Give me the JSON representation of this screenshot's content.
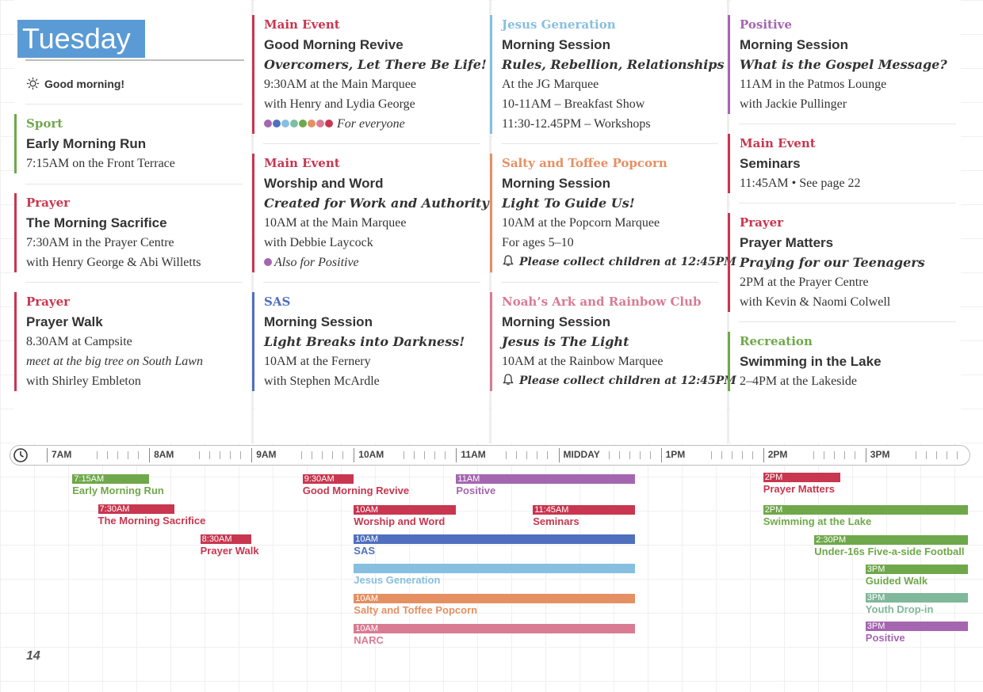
{
  "day": "Tuesday",
  "greeting": "Good morning!",
  "page_number": "14",
  "colors": {
    "blue": "#5b9bd5",
    "green": "#6fa84a",
    "red": "#c8364f",
    "purple": "#a566b0",
    "navy": "#4f6fbf",
    "sky": "#87bfe0",
    "orange": "#e49063",
    "pink": "#d87b93",
    "teal": "#7cbfa3",
    "youthgreen": "#7fb89a"
  },
  "entries": {
    "sport": {
      "cat": "Sport",
      "title": "Early Morning Run",
      "l1": "7:15AM on the Front Terrace"
    },
    "prayer1": {
      "cat": "Prayer",
      "title": "The Morning Sacrifice",
      "l1": "7:30AM in the Prayer Centre",
      "l2": "with Henry George  & Abi Willetts"
    },
    "prayer2": {
      "cat": "Prayer",
      "title": "Prayer Walk",
      "l1": "8.30AM at Campsite",
      "l2": "meet at the big tree on South Lawn",
      "l3": "with Shirley Embleton"
    },
    "main1": {
      "cat": "Main Event",
      "title": "Good Morning Revive",
      "sub": "Overcomers, Let There Be Life!",
      "l1": "9:30AM at the Main Marquee",
      "l2": "with Henry and Lydia George",
      "l3": "For everyone"
    },
    "main2": {
      "cat": "Main Event",
      "title": "Worship and Word",
      "sub": "Created for Work and Authority",
      "l1": "10AM at the Main Marquee",
      "l2": "with Debbie Laycock",
      "l3": "Also for Positive"
    },
    "sas": {
      "cat": "SAS",
      "title": "Morning Session",
      "sub": "Light Breaks into Darkness!",
      "l1": "10AM at the Fernery",
      "l2": "with Stephen McArdle"
    },
    "jg": {
      "cat": "Jesus Generation",
      "title": "Morning Session",
      "sub": "Rules, Rebellion, Relationships",
      "l1": "At the JG Marquee",
      "l2": "10-11AM – Breakfast Show",
      "l3": "11:30-12.45PM – Workshops"
    },
    "salty": {
      "cat": "Salty and Toffee Popcorn",
      "title": "Morning Session",
      "sub": "Light To Guide Us!",
      "l1": "10AM at the Popcorn Marquee",
      "l2": "For ages 5–10",
      "l3": "Please collect children at 12:45PM"
    },
    "noah": {
      "cat": "Noah’s Ark and Rainbow Club",
      "title": "Morning Session",
      "sub": "Jesus is The Light",
      "l1": "10AM at the Rainbow Marquee",
      "l2": "Please collect children at 12:45PM"
    },
    "positive": {
      "cat": "Positive",
      "title": "Morning Session",
      "sub": "What is the Gospel Message?",
      "l1": "11AM in the Patmos Lounge",
      "l2": "with Jackie Pullinger"
    },
    "seminars": {
      "cat": "Main Event",
      "title": "Seminars",
      "l1": "11:45AM  •  See page 22"
    },
    "prayer3": {
      "cat": "Prayer",
      "title": "Prayer Matters",
      "sub": "Praying for our Teenagers",
      "l1": "2PM at the Prayer Centre",
      "l2": "with Kevin & Naomi Colwell"
    },
    "recreation": {
      "cat": "Recreation",
      "title": "Swimming in the Lake",
      "l1": "2–4PM at the Lakeside"
    }
  },
  "timeline": {
    "hours": [
      "7AM",
      "8AM",
      "9AM",
      "10AM",
      "11AM",
      "MIDDAY",
      "1PM",
      "2PM",
      "3PM"
    ],
    "events": [
      {
        "time": "7:15AM",
        "name": "Early Morning Run",
        "start": 7.25,
        "end": 8.0,
        "color": "#6fa84a"
      },
      {
        "time": "7:30AM",
        "name": "The Morning Sacrifice",
        "start": 7.5,
        "end": 8.25,
        "color": "#c8364f"
      },
      {
        "time": "8:30AM",
        "name": "Prayer Walk",
        "start": 8.5,
        "end": 9.0,
        "color": "#c8364f"
      },
      {
        "time": "9:30AM",
        "name": "Good Morning Revive",
        "start": 9.5,
        "end": 10.0,
        "color": "#c8364f"
      },
      {
        "time": "11AM",
        "name": "Positive",
        "start": 11.0,
        "end": 12.75,
        "color": "#a566b0"
      },
      {
        "time": "10AM",
        "name": "Worship and Word",
        "start": 10.0,
        "end": 11.0,
        "color": "#c8364f"
      },
      {
        "time": "11:45AM",
        "name": "Seminars",
        "start": 11.75,
        "end": 12.75,
        "color": "#c8364f"
      },
      {
        "time": "10AM",
        "name": "SAS",
        "start": 10.0,
        "end": 12.75,
        "color": "#4f6fbf"
      },
      {
        "time": "",
        "name": "Jesus Generation",
        "start": 10.0,
        "end": 12.75,
        "color": "#87bfe0"
      },
      {
        "time": "10AM",
        "name": "Salty and Toffee Popcorn",
        "start": 10.0,
        "end": 12.75,
        "color": "#e49063"
      },
      {
        "time": "10AM",
        "name": "NARC",
        "start": 10.0,
        "end": 12.75,
        "color": "#d87b93"
      },
      {
        "time": "2PM",
        "name": "Prayer Matters",
        "start": 14.0,
        "end": 14.75,
        "color": "#c8364f"
      },
      {
        "time": "2PM",
        "name": "Swimming at the Lake",
        "start": 14.0,
        "end": 16.0,
        "color": "#6fa84a"
      },
      {
        "time": "2:30PM",
        "name": "Under-16s Five-a-side Football",
        "start": 14.5,
        "end": 16.0,
        "color": "#6fa84a"
      },
      {
        "time": "3PM",
        "name": "Guided Walk",
        "start": 15.0,
        "end": 16.0,
        "color": "#6fa84a"
      },
      {
        "time": "3PM",
        "name": "Youth Drop-in",
        "start": 15.0,
        "end": 16.0,
        "color": "#7fb89a"
      },
      {
        "time": "3PM",
        "name": "Positive",
        "start": 15.0,
        "end": 16.0,
        "color": "#a566b0"
      }
    ]
  }
}
